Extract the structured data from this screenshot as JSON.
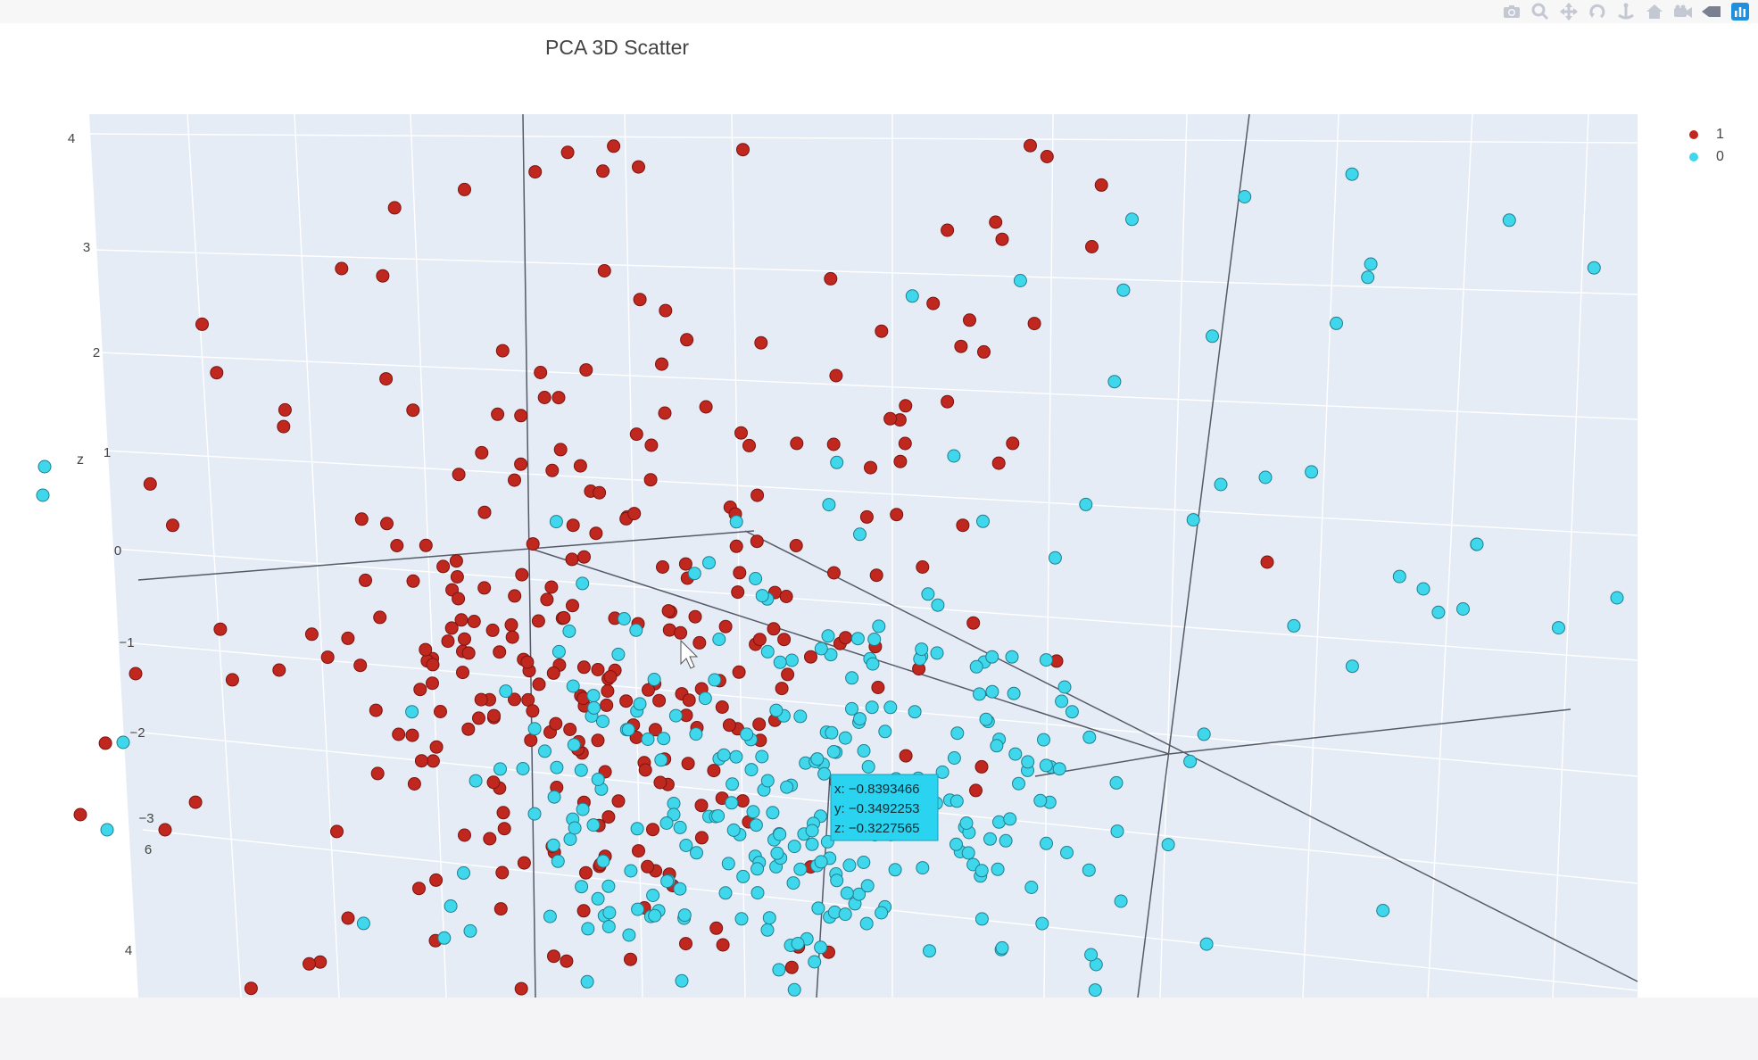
{
  "toolbar": {
    "buttons": [
      {
        "name": "camera-icon"
      },
      {
        "name": "zoom-icon"
      },
      {
        "name": "pan-icon"
      },
      {
        "name": "orbit-rotation-icon"
      },
      {
        "name": "turntable-rotation-icon"
      },
      {
        "name": "home-icon"
      },
      {
        "name": "reset-camera-icon"
      },
      {
        "name": "toggle-spike-lines-icon"
      },
      {
        "name": "plotly-logo-icon"
      }
    ]
  },
  "chart_data": {
    "type": "scatter",
    "title": "PCA 3D Scatter",
    "axis_labels": {
      "z": "z"
    },
    "z_ticks": [
      "4",
      "3",
      "2",
      "1",
      "0",
      "−1",
      "−2",
      "−3"
    ],
    "y_ticks": [
      "6",
      "4"
    ],
    "legend": [
      {
        "name": "1",
        "color": "#c0271e"
      },
      {
        "name": "0",
        "color": "#3fd7ec"
      }
    ],
    "hover": {
      "x": "x: −0.8393466",
      "y": "y: −0.3492253",
      "z": "z: −0.3227565"
    },
    "colors": {
      "class_1": "#c0271e",
      "class_0": "#3fd7ec",
      "scene_bg": "#e5ecf6",
      "hover_bg": "#2ad3f0"
    }
  }
}
